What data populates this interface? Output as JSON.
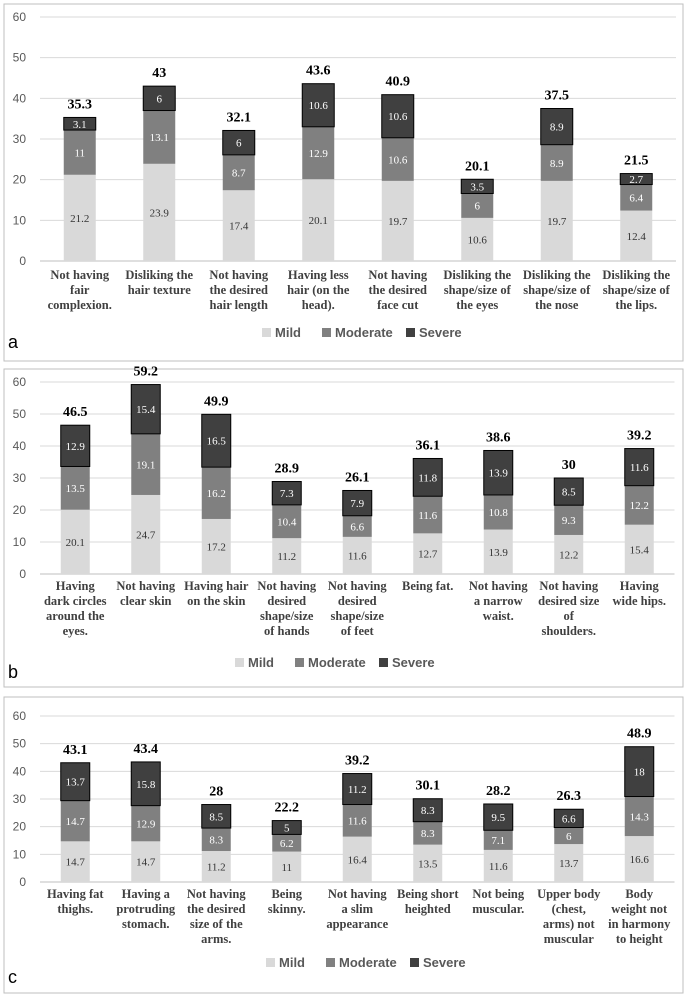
{
  "colors": {
    "mild": "#d9d9d9",
    "moderate": "#808080",
    "severe": "#404040",
    "severe_stroke": "#000000"
  },
  "chart_data": [
    {
      "type": "bar",
      "stacked": true,
      "panel": "a",
      "ylim": [
        0,
        60
      ],
      "yticks": [
        0,
        10,
        20,
        30,
        40,
        50,
        60
      ],
      "legend": [
        "Mild",
        "Moderate",
        "Severe"
      ],
      "categories": [
        [
          "Not having",
          "fair",
          "complexion."
        ],
        [
          "Disliking the",
          "hair texture"
        ],
        [
          "Not having",
          "the desired",
          "hair length"
        ],
        [
          "Having less",
          "hair (on the",
          "head)."
        ],
        [
          "Not having",
          "the desired",
          "face cut"
        ],
        [
          "Disliking the",
          "shape/size of",
          "the eyes"
        ],
        [
          "Disliking the",
          "shape/size of",
          "the nose"
        ],
        [
          "Disliking the",
          "shape/size of",
          "the lips."
        ]
      ],
      "series": [
        {
          "name": "Mild",
          "values": [
            21.2,
            23.9,
            17.4,
            20.1,
            19.7,
            10.6,
            19.7,
            12.4
          ]
        },
        {
          "name": "Moderate",
          "values": [
            11,
            13.1,
            8.7,
            12.9,
            10.6,
            6,
            8.9,
            6.4
          ]
        },
        {
          "name": "Severe",
          "values": [
            3.1,
            6,
            6,
            10.6,
            10.6,
            3.5,
            8.9,
            2.7
          ]
        }
      ],
      "totals": [
        "35.3",
        "43",
        "32.1",
        "43.6",
        "40.9",
        "20.1",
        "37.5",
        "21.5"
      ]
    },
    {
      "type": "bar",
      "stacked": true,
      "panel": "b",
      "ylim": [
        0,
        60
      ],
      "yticks": [
        0,
        10,
        20,
        30,
        40,
        50,
        60
      ],
      "legend": [
        "Mild",
        "Moderate",
        "Severe"
      ],
      "categories": [
        [
          "Having",
          "dark circles",
          "around the",
          "eyes."
        ],
        [
          "Not having",
          "clear skin"
        ],
        [
          "Having hair",
          "on the skin"
        ],
        [
          "Not having",
          "desired",
          "shape/size",
          "of hands"
        ],
        [
          "Not having",
          "desired",
          "shape/size",
          "of feet"
        ],
        [
          "Being fat."
        ],
        [
          "Not having",
          "a narrow",
          "waist."
        ],
        [
          "Not having",
          "desired size",
          "of",
          "shoulders."
        ],
        [
          "Having",
          "wide hips."
        ]
      ],
      "series": [
        {
          "name": "Mild",
          "values": [
            20.1,
            24.7,
            17.2,
            11.2,
            11.6,
            12.7,
            13.9,
            12.2,
            15.4
          ]
        },
        {
          "name": "Moderate",
          "values": [
            13.5,
            19.1,
            16.2,
            10.4,
            6.6,
            11.6,
            10.8,
            9.3,
            12.2
          ]
        },
        {
          "name": "Severe",
          "values": [
            12.9,
            15.4,
            16.5,
            7.3,
            7.9,
            11.8,
            13.9,
            8.5,
            11.6
          ]
        }
      ],
      "totals": [
        "46.5",
        "59.2",
        "49.9",
        "28.9",
        "26.1",
        "36.1",
        "38.6",
        "30",
        "39.2"
      ]
    },
    {
      "type": "bar",
      "stacked": true,
      "panel": "c",
      "ylim": [
        0,
        60
      ],
      "yticks": [
        0,
        10,
        20,
        30,
        40,
        50,
        60
      ],
      "legend": [
        "Mild",
        "Moderate",
        "Severe"
      ],
      "categories": [
        [
          "Having fat",
          "thighs."
        ],
        [
          "Having a",
          "protruding",
          "stomach."
        ],
        [
          "Not having",
          "the desired",
          "size of the",
          "arms."
        ],
        [
          "Being",
          "skinny."
        ],
        [
          "Not having",
          "a slim",
          "appearance"
        ],
        [
          "Being short",
          "heighted"
        ],
        [
          "Not being",
          "muscular."
        ],
        [
          "Upper body",
          "(chest,",
          "arms) not",
          "muscular"
        ],
        [
          "Body",
          "weight not",
          "in harmony",
          "to height"
        ]
      ],
      "series": [
        {
          "name": "Mild",
          "values": [
            14.7,
            14.7,
            11.2,
            11,
            16.4,
            13.5,
            11.6,
            13.7,
            16.6
          ]
        },
        {
          "name": "Moderate",
          "values": [
            14.7,
            12.9,
            8.3,
            6.2,
            11.6,
            8.3,
            7.1,
            6,
            14.3
          ]
        },
        {
          "name": "Severe",
          "values": [
            13.7,
            15.8,
            8.5,
            5,
            11.2,
            8.3,
            9.5,
            6.6,
            18
          ]
        }
      ],
      "totals": [
        "43.1",
        "43.4",
        "28",
        "22.2",
        "39.2",
        "30.1",
        "28.2",
        "26.3",
        "48.9"
      ]
    }
  ]
}
